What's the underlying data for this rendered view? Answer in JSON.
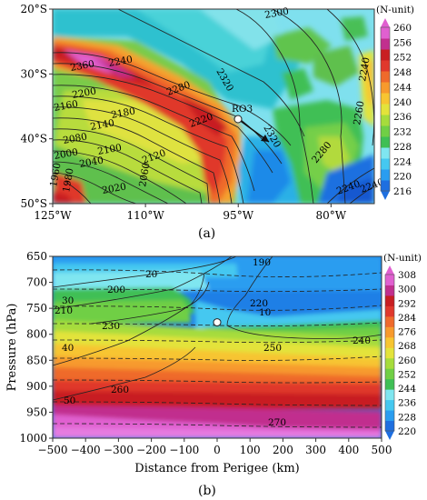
{
  "chart_data": [
    {
      "panel": "(a)",
      "type": "heatmap",
      "overlay": "contour",
      "x_tick_labels": [
        "125°W",
        "110°W",
        "95°W",
        "80°W"
      ],
      "x_ticks": [
        -125,
        -110,
        -95,
        -80
      ],
      "xlim": [
        -125,
        -73
      ],
      "y_tick_labels": [
        "20°S",
        "30°S",
        "40°S",
        "50°S"
      ],
      "y_ticks": [
        -20,
        -30,
        -40,
        -50
      ],
      "ylim": [
        -50,
        -20
      ],
      "colorbar": {
        "unit": "(N-unit)",
        "ticks": [
          260,
          256,
          252,
          248,
          244,
          240,
          236,
          232,
          228,
          224,
          220,
          216
        ],
        "range": [
          216,
          260
        ],
        "colors": [
          "#1e6fe0",
          "#2a9df0",
          "#45c8f0",
          "#7fe6f0",
          "#3fbf55",
          "#70cf45",
          "#a6dc3c",
          "#e3e33b",
          "#f7c531",
          "#f79a2d",
          "#ef6a2c",
          "#e0382c",
          "#c81e22",
          "#c12f8e",
          "#e060d0"
        ]
      },
      "contour_labels": [
        "2300",
        "2360",
        "2240",
        "2280",
        "2320",
        "2200",
        "2160",
        "2180",
        "2220",
        "2140",
        "2080",
        "2100",
        "2120",
        "2000",
        "2040",
        "2060",
        "1960",
        "1980",
        "2020",
        "2320",
        "2280",
        "2260",
        "2240",
        "2240",
        "2240"
      ],
      "marker": {
        "label": "RO3",
        "lon": -95.5,
        "lat": -37
      }
    },
    {
      "panel": "(b)",
      "type": "heatmap",
      "overlay": "contour",
      "xlabel": "Distance from Perigee (km)",
      "ylabel": "Pressure (hPa)",
      "x_tick_labels": [
        "−500",
        "−400",
        "−300",
        "−200",
        "−100",
        "0",
        "100",
        "200",
        "300",
        "400",
        "500"
      ],
      "x_ticks": [
        -500,
        -400,
        -300,
        -200,
        -100,
        0,
        100,
        200,
        300,
        400,
        500
      ],
      "xlim": [
        -500,
        500
      ],
      "y_tick_labels": [
        "650",
        "700",
        "750",
        "800",
        "850",
        "900",
        "950",
        "1000"
      ],
      "y_ticks": [
        650,
        700,
        750,
        800,
        850,
        900,
        950,
        1000
      ],
      "ylim": [
        1000,
        650
      ],
      "colorbar": {
        "unit": "(N-unit)",
        "ticks": [
          308,
          300,
          292,
          284,
          276,
          268,
          260,
          252,
          244,
          236,
          228,
          220
        ],
        "range": [
          220,
          308
        ],
        "colors": [
          "#1e6fe0",
          "#2a9df0",
          "#45c8f0",
          "#7fe6f0",
          "#3fbf55",
          "#70cf45",
          "#a6dc3c",
          "#e3e33b",
          "#f7c531",
          "#f79a2d",
          "#ef6a2c",
          "#e0382c",
          "#c81e22",
          "#c12f8e",
          "#e060d0"
        ]
      },
      "contour_labels": [
        "190",
        "20",
        "200",
        "30",
        "210",
        "220",
        "230",
        "10",
        "240",
        "40",
        "250",
        "260",
        "50",
        "270"
      ],
      "marker": {
        "distance_km": 0,
        "pressure_hpa": 777
      }
    }
  ]
}
